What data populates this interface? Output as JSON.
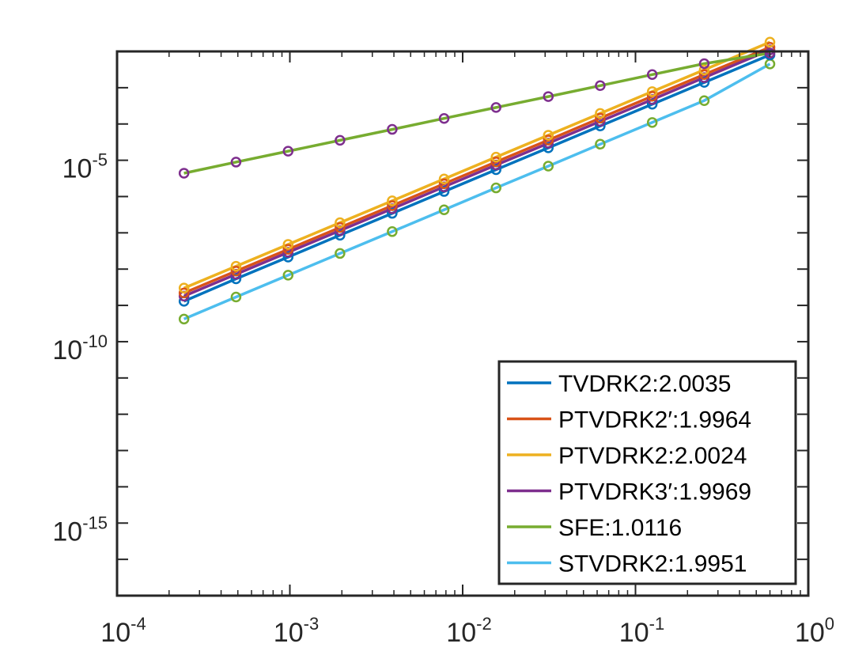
{
  "chart_data": {
    "type": "line",
    "title": "",
    "xlabel": "",
    "ylabel": "",
    "xscale": "log",
    "yscale": "log",
    "xlim": [
      0.0001,
      1
    ],
    "ylim": [
      1e-17,
      0.01
    ],
    "grid": false,
    "legend_position": "bottom-right",
    "x_ticks": [
      {
        "value": 0.0001,
        "base": "10",
        "exp": "-4"
      },
      {
        "value": 0.001,
        "base": "10",
        "exp": "-3"
      },
      {
        "value": 0.01,
        "base": "10",
        "exp": "-2"
      },
      {
        "value": 0.1,
        "base": "10",
        "exp": "-1"
      },
      {
        "value": 1,
        "base": "10",
        "exp": "0"
      }
    ],
    "y_ticks": [
      {
        "value": 1e-15,
        "base": "10",
        "exp": "-15"
      },
      {
        "value": 1e-10,
        "base": "10",
        "exp": "-10"
      },
      {
        "value": 1e-05,
        "base": "10",
        "exp": "-5"
      }
    ],
    "x": [
      0.000244,
      0.000488,
      0.000977,
      0.00195,
      0.00391,
      0.00781,
      0.0156,
      0.0313,
      0.0625,
      0.125,
      0.25,
      0.6
    ],
    "series": [
      {
        "name": "TVDRK2:2.0035",
        "color": "#0072BD",
        "values": [
          1.3e-09,
          5.4e-09,
          2.15e-08,
          8.6e-08,
          3.45e-07,
          1.38e-06,
          5.5e-06,
          2.2e-05,
          8.8e-05,
          0.00035,
          0.0014,
          0.008
        ]
      },
      {
        "name": "PTVDRK2′:1.9964",
        "color": "#D95319",
        "values": [
          2.2e-09,
          8.8e-09,
          3.5e-08,
          1.4e-07,
          5.6e-07,
          2.25e-06,
          9e-06,
          3.6e-05,
          0.000145,
          0.00058,
          0.0023,
          0.013
        ]
      },
      {
        "name": "PTVDRK2:2.0024",
        "color": "#EDB120",
        "values": [
          3e-09,
          1.2e-08,
          4.8e-08,
          1.9e-07,
          7.6e-07,
          3.05e-06,
          1.22e-05,
          4.9e-05,
          0.000195,
          0.00078,
          0.0031,
          0.018
        ]
      },
      {
        "name": "PTVDRK3′:1.9969",
        "color": "#7E2F8E",
        "values": [
          1.8e-09,
          7.2e-09,
          2.9e-08,
          1.15e-07,
          4.6e-07,
          1.85e-06,
          7.4e-06,
          2.95e-05,
          0.000118,
          0.00047,
          0.0019,
          0.011
        ]
      },
      {
        "name": "SFE:1.0116",
        "color": "#77AC30",
        "values": [
          4.4e-06,
          8.9e-06,
          1.78e-05,
          3.55e-05,
          7.1e-05,
          0.000142,
          0.000285,
          0.00057,
          0.00114,
          0.0023,
          0.0046,
          0.009
        ]
      },
      {
        "name": "STVDRK2:1.9951",
        "color": "#4DBEEE",
        "values": [
          4.2e-10,
          1.7e-09,
          6.8e-09,
          2.7e-08,
          1.08e-07,
          4.3e-07,
          1.73e-06,
          6.9e-06,
          2.77e-05,
          0.00011,
          0.00044,
          0.0045
        ]
      }
    ],
    "markers": [
      {
        "series_index": 1,
        "color": "#D95319"
      },
      {
        "series_index": 0,
        "color": "#0072BD"
      },
      {
        "series_index": 2,
        "color": "#EDB120"
      },
      {
        "series_index": 3,
        "color": "#7E2F8E"
      },
      {
        "series_index": 5,
        "color": "#77AC30"
      }
    ],
    "sfe_marker_color": "#7E2F8E",
    "legend": [
      {
        "label": "TVDRK2:2.0035",
        "color": "#0072BD"
      },
      {
        "label": "PTVDRK2′:1.9964",
        "color": "#D95319"
      },
      {
        "label": "PTVDRK2:2.0024",
        "color": "#EDB120"
      },
      {
        "label": "PTVDRK3′:1.9969",
        "color": "#7E2F8E"
      },
      {
        "label": "SFE:1.0116",
        "color": "#77AC30"
      },
      {
        "label": "STVDRK2:1.9951",
        "color": "#4DBEEE"
      }
    ]
  }
}
